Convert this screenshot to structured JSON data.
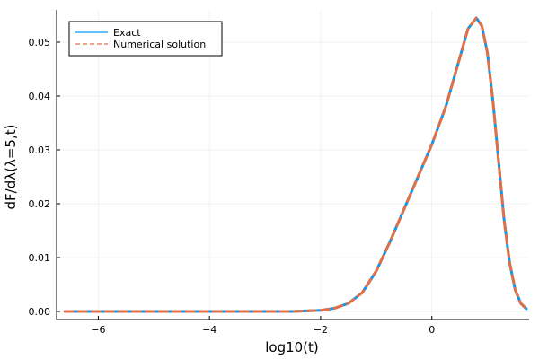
{
  "chart_data": {
    "type": "line",
    "xlabel": "log10(t)",
    "ylabel": "dF/dλ(λ=5,t)",
    "xlim": [
      -6.75,
      1.75
    ],
    "ylim": [
      -0.0015,
      0.056
    ],
    "xticks": [
      -6,
      -4,
      -2,
      0
    ],
    "yticks": [
      0.0,
      0.01,
      0.02,
      0.03,
      0.04,
      0.05
    ],
    "ytick_labels": [
      "0.00",
      "0.01",
      "0.02",
      "0.03",
      "0.04",
      "0.05"
    ],
    "xtick_labels": [
      "−6",
      "−4",
      "−2",
      "0"
    ],
    "grid": true,
    "legend_position": "top-left",
    "series": [
      {
        "name": "Exact",
        "color": "#009af9",
        "style": "solid",
        "x": [
          -6.6,
          -5,
          -4,
          -3,
          -2.5,
          -2,
          -1.75,
          -1.5,
          -1.25,
          -1.0,
          -0.75,
          -0.5,
          -0.25,
          0.0,
          0.25,
          0.5,
          0.65,
          0.8,
          0.9,
          1.0,
          1.1,
          1.2,
          1.3,
          1.4,
          1.5,
          1.6,
          1.7
        ],
        "y": [
          0,
          0,
          0,
          0,
          0,
          0.0002,
          0.0006,
          0.0015,
          0.0035,
          0.0075,
          0.013,
          0.019,
          0.025,
          0.031,
          0.038,
          0.047,
          0.0525,
          0.0545,
          0.053,
          0.048,
          0.039,
          0.028,
          0.017,
          0.009,
          0.004,
          0.0015,
          0.0005
        ]
      },
      {
        "name": "Numerical solution",
        "color": "#e26f46",
        "style": "dashed",
        "x": [
          -6.6,
          -5,
          -4,
          -3,
          -2.5,
          -2,
          -1.75,
          -1.5,
          -1.25,
          -1.0,
          -0.75,
          -0.5,
          -0.25,
          0.0,
          0.25,
          0.5,
          0.65,
          0.8,
          0.9,
          1.0,
          1.1,
          1.2,
          1.3,
          1.4,
          1.5,
          1.6,
          1.7
        ],
        "y": [
          0,
          0,
          0,
          0,
          0,
          0.0002,
          0.0006,
          0.0015,
          0.0035,
          0.0075,
          0.013,
          0.019,
          0.025,
          0.031,
          0.038,
          0.047,
          0.0525,
          0.0545,
          0.053,
          0.048,
          0.039,
          0.028,
          0.017,
          0.009,
          0.004,
          0.0015,
          0.0005
        ]
      }
    ]
  }
}
